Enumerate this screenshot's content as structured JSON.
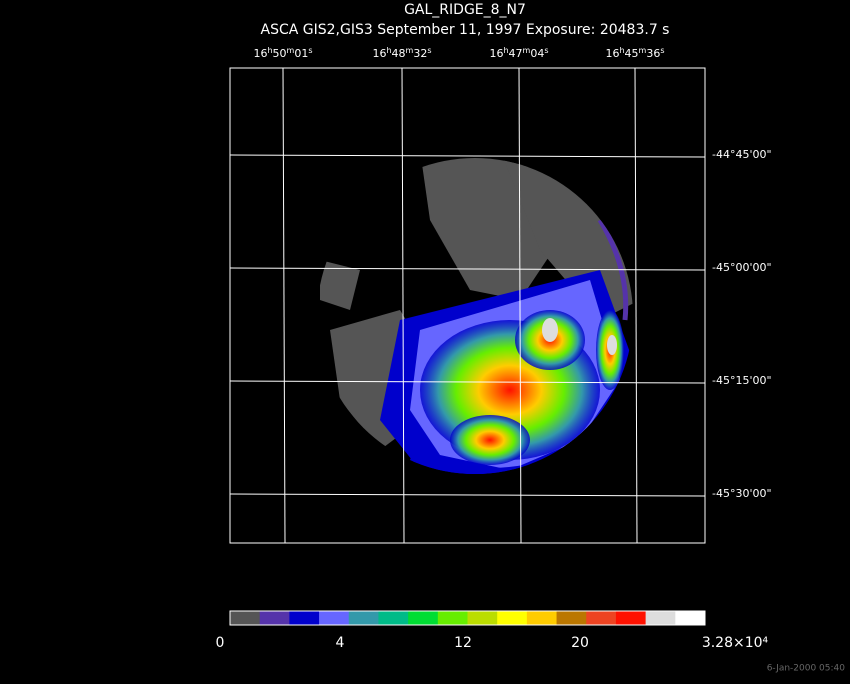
{
  "title": "GAL_RIDGE_8_N7",
  "subtitle": "ASCA GIS2,GIS3 September 11, 1997 Exposure: 20483.7 s",
  "ra_labels": [
    [
      "16",
      "h",
      "50",
      "m",
      "01",
      "s"
    ],
    [
      "16",
      "h",
      "48",
      "m",
      "32",
      "s"
    ],
    [
      "16",
      "h",
      "47",
      "m",
      "04",
      "s"
    ],
    [
      "16",
      "h",
      "45",
      "m",
      "36",
      "s"
    ]
  ],
  "dec_labels": [
    "-44°45'00\"",
    "-45°00'00\"",
    "-45°15'00\"",
    "-45°30'00\""
  ],
  "colorbar": {
    "colors": [
      "#555555",
      "#5533aa",
      "#0000cc",
      "#6666ff",
      "#3399aa",
      "#00bb88",
      "#00dd33",
      "#66ee00",
      "#bbdd00",
      "#ffff00",
      "#ffcc00",
      "#bb7700",
      "#ee4422",
      "#ff1100",
      "#dddddd",
      "#ffffff"
    ],
    "labels": [
      "0",
      "4",
      "12",
      "20",
      "3.28×10⁴"
    ]
  },
  "timestamp": "6-Jan-2000 05:40"
}
